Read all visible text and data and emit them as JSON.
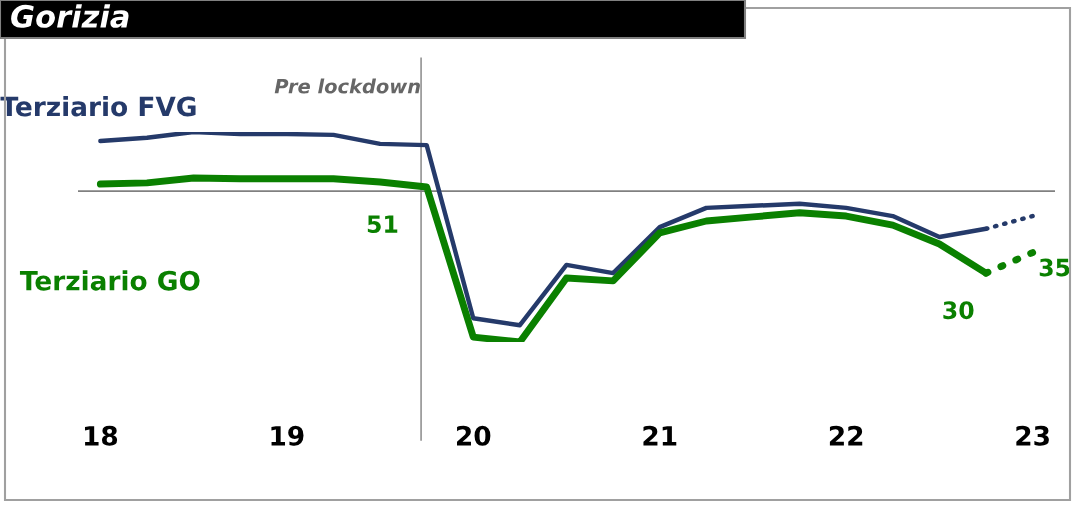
{
  "chart_data": {
    "type": "line",
    "title": "Gorizia",
    "xlim": [
      17.88,
      23.12
    ],
    "xticks": [
      18,
      19,
      20,
      21,
      22,
      23
    ],
    "tick_labels": "x",
    "grid": false,
    "ref_lines": [
      {
        "axis": "y",
        "value": 50,
        "color": "#808080"
      },
      {
        "axis": "x",
        "value": 19.72,
        "label": "Pre lockdown",
        "color": "#808080"
      }
    ],
    "series": [
      {
        "name": "Terziario FVG",
        "color": "#253a6a",
        "line_style": "solid",
        "x": [
          18,
          18.25,
          18.5,
          18.75,
          19,
          19.25,
          19.5,
          19.75,
          20,
          20.25,
          20.5,
          20.75,
          21,
          21.25,
          21.5,
          21.75,
          22,
          22.25,
          22.5,
          22.75
        ],
        "values": [
          62.2,
          63.0,
          64.4,
          63.9,
          63.9,
          63.7,
          61.5,
          61.2,
          19.0,
          17.3,
          32.0,
          30.0,
          41.2,
          45.9,
          46.4,
          46.9,
          45.9,
          43.9,
          38.8,
          40.8
        ]
      },
      {
        "color": "#253a6a",
        "line_style": "dotted",
        "x": [
          22.75,
          23
        ],
        "values": [
          40.8,
          43.9
        ]
      },
      {
        "name": "Terziario GO",
        "color": "#0a8000",
        "line_style": "solid",
        "x": [
          18,
          18.25,
          18.5,
          18.75,
          19,
          19.25,
          19.5,
          19.75,
          20,
          20.25,
          20.5,
          20.75,
          21,
          21.25,
          21.5,
          21.75,
          22,
          22.25,
          22.5,
          22.75
        ],
        "values": [
          51.7,
          52.0,
          53.2,
          53.0,
          53.0,
          53.0,
          52.2,
          51,
          14.4,
          13.2,
          28.8,
          28.1,
          39.8,
          42.7,
          43.7,
          44.7,
          43.9,
          41.7,
          37.1,
          30
        ],
        "value_labels": [
          null,
          null,
          null,
          null,
          null,
          null,
          null,
          "51",
          null,
          null,
          null,
          null,
          null,
          null,
          null,
          null,
          null,
          null,
          null,
          "30"
        ]
      },
      {
        "color": "#0a8000",
        "line_style": "dotted",
        "x": [
          22.75,
          23
        ],
        "values": [
          30,
          35
        ],
        "value_labels": [
          null,
          "35"
        ]
      }
    ]
  }
}
